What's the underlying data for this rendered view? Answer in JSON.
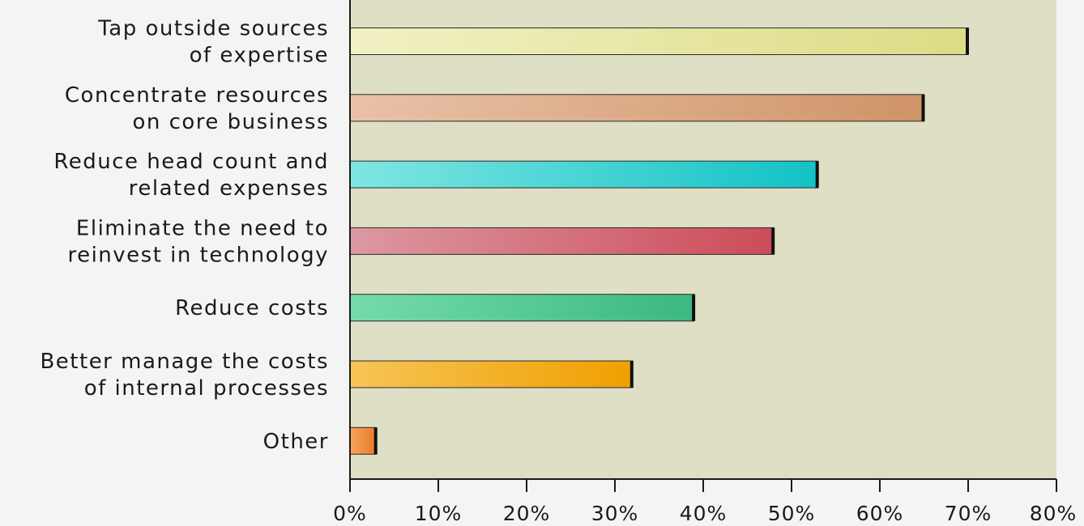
{
  "chart_data": {
    "type": "bar",
    "orientation": "horizontal",
    "title": "",
    "xlabel": "",
    "ylabel": "",
    "xlim": [
      0,
      80
    ],
    "x_tick_values": [
      0,
      10,
      20,
      30,
      40,
      50,
      60,
      70,
      80
    ],
    "x_tick_labels": [
      "0%",
      "10%",
      "20%",
      "30%",
      "40%",
      "50%",
      "60%",
      "70%",
      "80%"
    ],
    "categories": [
      [
        "Tap outside sources",
        "of expertise"
      ],
      [
        "Concentrate resources",
        "on core business"
      ],
      [
        "Reduce head count and",
        "related expenses"
      ],
      [
        "Eliminate the need to",
        "reinvest in technology"
      ],
      [
        "Reduce costs"
      ],
      [
        "Better manage the costs",
        "of internal processes"
      ],
      [
        "Other"
      ]
    ],
    "values": [
      70,
      65,
      53,
      48,
      39,
      32,
      3
    ],
    "bar_colors": [
      [
        "#f1f1c4",
        "#dcdc86"
      ],
      [
        "#e8c2a8",
        "#cf9467"
      ],
      [
        "#7fe6e2",
        "#12c2c6"
      ],
      [
        "#dc98a2",
        "#cc4c58"
      ],
      [
        "#74dcaa",
        "#3cb882"
      ],
      [
        "#f7c456",
        "#f0a000"
      ],
      [
        "#f5a55c",
        "#ec7a2a"
      ]
    ],
    "plot_background": "#dfdfc6",
    "grid": false
  }
}
